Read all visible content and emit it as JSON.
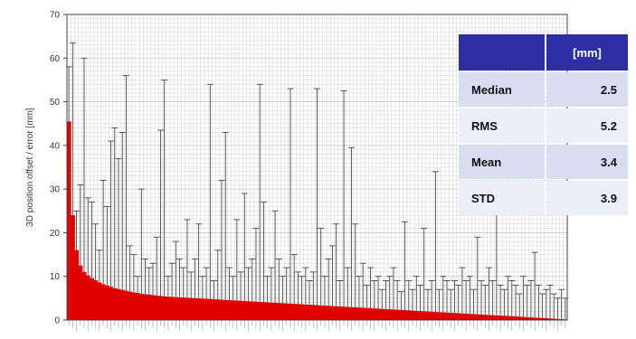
{
  "chart_data": {
    "type": "bar",
    "ylabel": "3D position offset / error [mm]",
    "xlabel": "",
    "ylim": [
      0,
      70
    ],
    "yticks": [
      0,
      10,
      20,
      30,
      40,
      50,
      60,
      70
    ],
    "grid": true,
    "grid_style": "dense",
    "colors": {
      "bar": "#e00000",
      "error_bar": "#333333",
      "background": "#ffffff",
      "grid": "#c8c8c8"
    },
    "series": [
      {
        "name": "",
        "values": [
          45.5,
          24.0,
          16.0,
          12.5,
          11.0,
          10.2,
          9.6,
          9.1,
          8.6,
          8.2,
          7.9,
          7.6,
          7.3,
          7.1,
          6.9,
          6.7,
          6.5,
          6.3,
          6.2,
          6.0,
          5.9,
          5.8,
          5.7,
          5.6,
          5.5,
          5.4,
          5.35,
          5.3,
          5.25,
          5.2,
          5.15,
          5.1,
          5.05,
          5.0,
          4.95,
          4.9,
          4.85,
          4.8,
          4.75,
          4.7,
          4.65,
          4.6,
          4.55,
          4.5,
          4.45,
          4.4,
          4.35,
          4.3,
          4.25,
          4.2,
          4.15,
          4.1,
          4.05,
          4.0,
          3.95,
          3.9,
          3.85,
          3.8,
          3.75,
          3.7,
          3.65,
          3.6,
          3.55,
          3.5,
          3.45,
          3.4,
          3.35,
          3.3,
          3.25,
          3.2,
          3.15,
          3.1,
          3.05,
          3.0,
          2.95,
          2.9,
          2.85,
          2.8,
          2.75,
          2.7,
          2.65,
          2.6,
          2.55,
          2.5,
          2.45,
          2.4,
          2.35,
          2.3,
          2.25,
          2.2,
          2.15,
          2.1,
          2.05,
          2.0,
          1.95,
          1.9,
          1.85,
          1.8,
          1.75,
          1.7,
          1.65,
          1.6,
          1.55,
          1.5,
          1.45,
          1.4,
          1.35,
          1.3,
          1.25,
          1.2,
          1.15,
          1.1,
          1.05,
          1.0,
          0.95,
          0.9,
          0.85,
          0.8,
          0.75,
          0.7,
          0.65,
          0.6,
          0.55,
          0.5,
          0.45,
          0.4,
          0.35,
          0.3,
          0.25,
          0.2,
          0.15
        ],
        "upper_error": [
          58,
          63.5,
          25,
          31,
          60,
          28,
          27,
          22,
          16,
          32,
          26,
          41,
          44,
          37,
          43,
          56,
          17,
          15,
          10,
          30,
          14,
          12,
          13,
          19,
          43.5,
          55,
          10,
          13,
          18,
          14,
          12,
          23,
          11,
          14,
          22,
          10,
          12,
          54,
          9,
          16,
          32,
          43,
          12,
          10,
          23,
          11,
          29,
          12,
          14,
          21,
          54,
          27,
          10,
          12,
          25,
          14,
          10,
          12,
          53,
          15,
          11,
          10,
          12,
          9,
          11,
          53,
          21,
          10,
          14,
          17,
          22,
          9,
          52.5,
          12,
          39.5,
          22,
          10,
          13,
          8,
          12,
          9,
          10,
          7,
          9,
          10,
          12,
          9,
          6.5,
          22.5,
          9,
          7,
          10,
          8,
          21,
          7,
          9,
          34,
          7,
          10,
          9,
          7,
          9,
          8,
          12,
          9,
          10,
          7,
          19,
          9,
          8,
          12,
          9,
          25,
          8,
          7,
          10,
          9,
          8,
          6,
          10,
          8,
          9,
          15.5,
          8,
          6,
          7,
          8,
          6,
          5,
          7,
          5
        ]
      }
    ],
    "stats_table": {
      "header": [
        "",
        "[mm]"
      ],
      "rows": [
        {
          "label": "Median",
          "value": "2.5"
        },
        {
          "label": "RMS",
          "value": "5.2"
        },
        {
          "label": "Mean",
          "value": "3.4"
        },
        {
          "label": "STD",
          "value": "3.9"
        }
      ]
    }
  }
}
